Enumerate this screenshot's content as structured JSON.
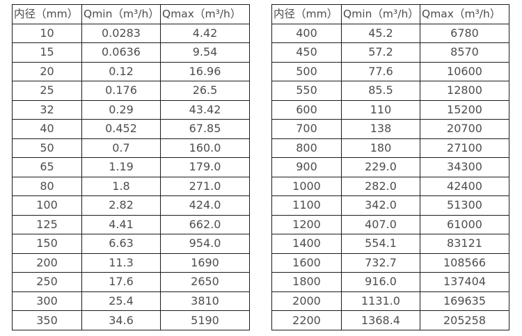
{
  "page": {
    "background": "#ffffff",
    "text_color": "#4d4d4d",
    "border_color": "#1a1a1a"
  },
  "tables": [
    {
      "name": "flow-range-small-diameters",
      "headers": [
        "内径（mm）",
        "Qmin（m³/h）",
        "Qmax（m³/h）"
      ],
      "rows": [
        [
          "10",
          "0.0283",
          "4.42"
        ],
        [
          "15",
          "0.0636",
          "9.54"
        ],
        [
          "20",
          "0.12",
          "16.96"
        ],
        [
          "25",
          "0.176",
          "26.5"
        ],
        [
          "32",
          "0.29",
          "43.42"
        ],
        [
          "40",
          "0.452",
          "67.85"
        ],
        [
          "50",
          "0.7",
          "160.0"
        ],
        [
          "65",
          "1.19",
          "179.0"
        ],
        [
          "80",
          "1.8",
          "271.0"
        ],
        [
          "100",
          "2.82",
          "424.0"
        ],
        [
          "125",
          "4.41",
          "662.0"
        ],
        [
          "150",
          "6.63",
          "954.0"
        ],
        [
          "200",
          "11.3",
          "1690"
        ],
        [
          "250",
          "17.6",
          "2650"
        ],
        [
          "300",
          "25.4",
          "3810"
        ],
        [
          "350",
          "34.6",
          "5190"
        ]
      ]
    },
    {
      "name": "flow-range-large-diameters",
      "headers": [
        "内径（mm）",
        "Qmin（m³/h）",
        "Qmax（m³/h）"
      ],
      "rows": [
        [
          "400",
          "45.2",
          "6780"
        ],
        [
          "450",
          "57.2",
          "8570"
        ],
        [
          "500",
          "77.6",
          "10600"
        ],
        [
          "550",
          "85.5",
          "12800"
        ],
        [
          "600",
          "110",
          "15200"
        ],
        [
          "700",
          "138",
          "20700"
        ],
        [
          "800",
          "180",
          "27100"
        ],
        [
          "900",
          "229.0",
          "34300"
        ],
        [
          "1000",
          "282.0",
          "42400"
        ],
        [
          "1100",
          "342.0",
          "51300"
        ],
        [
          "1200",
          "407.0",
          "61000"
        ],
        [
          "1400",
          "554.1",
          "83121"
        ],
        [
          "1600",
          "732.7",
          "108566"
        ],
        [
          "1800",
          "916.0",
          "137404"
        ],
        [
          "2000",
          "1131.0",
          "169635"
        ],
        [
          "2200",
          "1368.4",
          "205258"
        ]
      ]
    }
  ]
}
